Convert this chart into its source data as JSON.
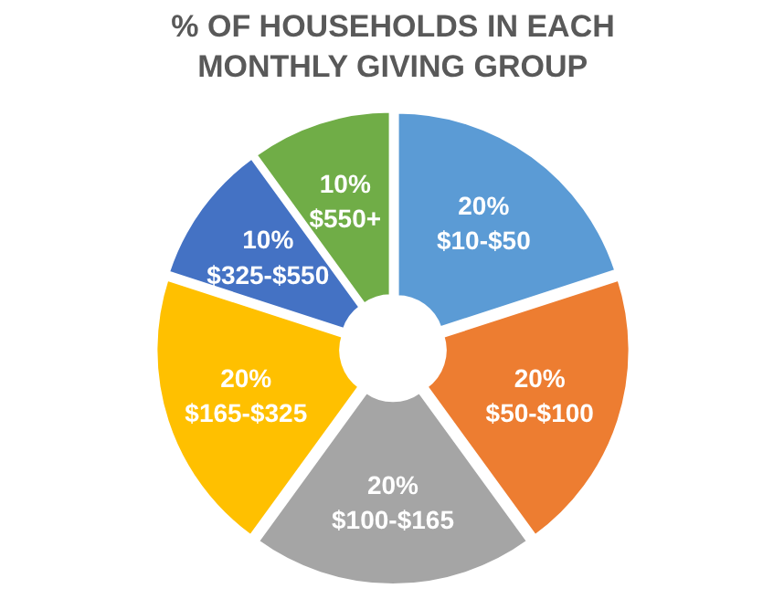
{
  "chart_data": {
    "type": "donut",
    "title": "% OF HOUSEHOLDS IN EACH\nMONTHLY GIVING GROUP",
    "categories": [
      "$10-$50",
      "$50-$100",
      "$100-$165",
      "$165-$325",
      "$325-$550",
      "$550+"
    ],
    "values": [
      20,
      20,
      20,
      20,
      10,
      10
    ],
    "colors": [
      "#5b9bd5",
      "#ed7d31",
      "#a5a5a5",
      "#ffc000",
      "#4472c4",
      "#70ad47"
    ],
    "value_labels": [
      "20%",
      "20%",
      "20%",
      "20%",
      "10%",
      "10%"
    ]
  }
}
